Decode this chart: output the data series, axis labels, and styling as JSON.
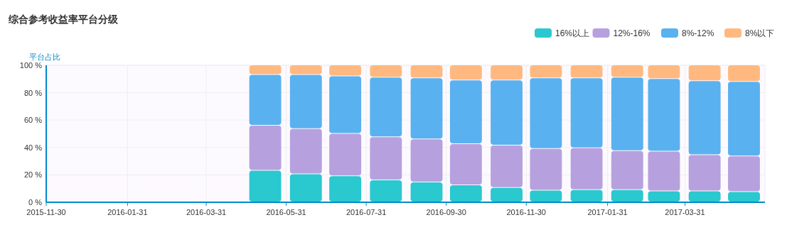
{
  "chart_data": {
    "type": "bar",
    "title": "综合参考收益率平台分级",
    "ylabel": "平台占比",
    "stacked": true,
    "x": [
      "2016-05-15",
      "2016-06-15",
      "2016-07-15",
      "2016-08-15",
      "2016-09-15",
      "2016-10-15",
      "2016-11-15",
      "2016-12-15",
      "2017-01-15",
      "2017-02-15",
      "2017-03-15",
      "2017-04-15",
      "2017-05-15"
    ],
    "series": [
      {
        "name": "16%以上",
        "color": "#2ac8cf",
        "values": [
          23,
          20.5,
          19,
          16,
          14.5,
          12.5,
          10.5,
          8.5,
          9,
          9,
          8,
          8,
          7.5
        ]
      },
      {
        "name": "12%-16%",
        "color": "#b6a1de",
        "values": [
          33,
          33,
          31,
          31.5,
          31.5,
          30,
          31,
          30.5,
          30.5,
          28.5,
          29,
          26.5,
          26
        ]
      },
      {
        "name": "8%-12%",
        "color": "#5ab1ef",
        "values": [
          37,
          39.5,
          42,
          43.5,
          44.5,
          46.5,
          47.5,
          51.5,
          51,
          53.5,
          53,
          54,
          54.5
        ]
      },
      {
        "name": "8%以下",
        "color": "#ffb980",
        "values": [
          7,
          7,
          8,
          9,
          9.5,
          11,
          11,
          9.5,
          9.5,
          9,
          10,
          11.5,
          12
        ]
      }
    ],
    "xlim": [
      "2015-11-30",
      "2017-05-31"
    ],
    "xticks": [
      "2015-11-30",
      "2016-01-31",
      "2016-03-31",
      "2016-05-31",
      "2016-07-31",
      "2016-09-30",
      "2016-11-30",
      "2017-01-31",
      "2017-03-31"
    ],
    "ylim": [
      0,
      100
    ],
    "yticks": [
      {
        "value": 0,
        "label": "0 %"
      },
      {
        "value": 20,
        "label": "20 %"
      },
      {
        "value": 40,
        "label": "40 %"
      },
      {
        "value": 60,
        "label": "60 %"
      },
      {
        "value": 80,
        "label": "80 %"
      },
      {
        "value": 100,
        "label": "100 %"
      }
    ],
    "grid": true,
    "legend": "top right"
  }
}
